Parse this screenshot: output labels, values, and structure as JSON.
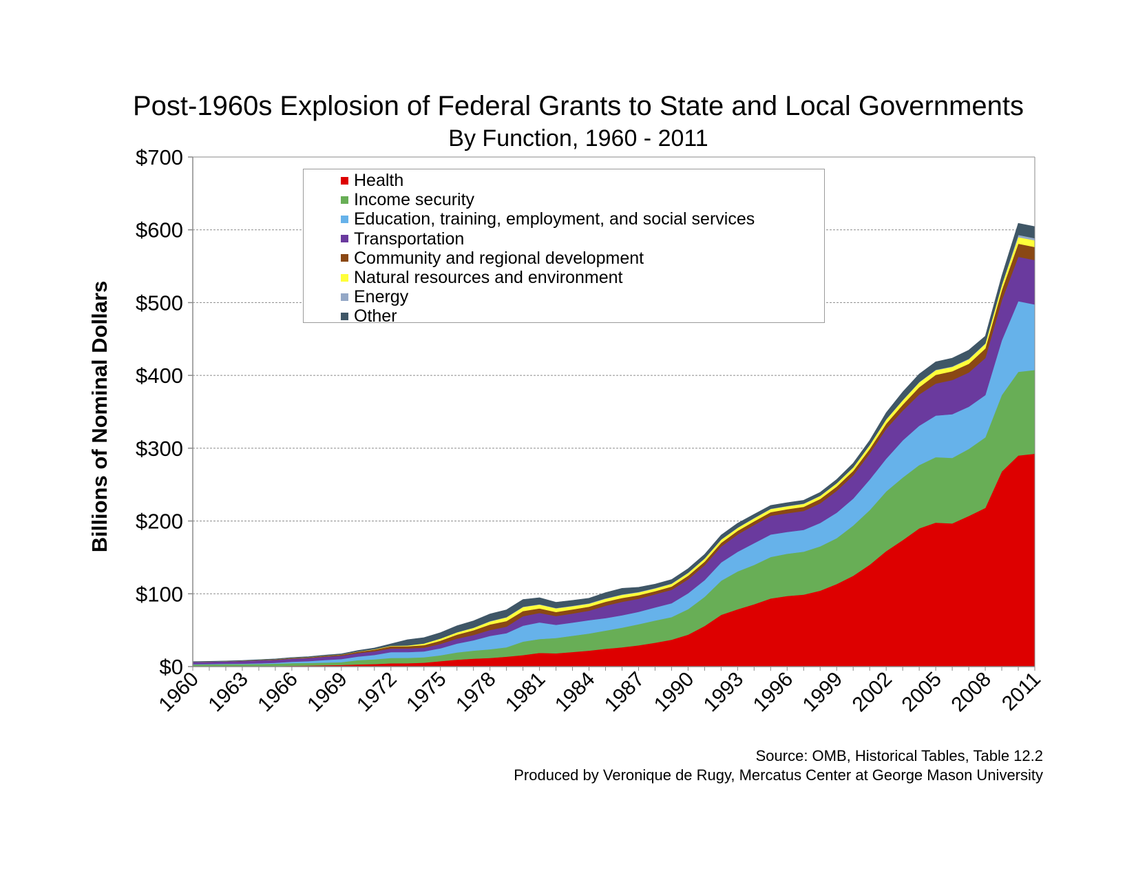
{
  "chart_data": {
    "type": "area",
    "stacked": true,
    "title": "Post-1960s Explosion of Federal Grants to State and Local Governments",
    "subtitle": "By Function, 1960 - 2011",
    "ylabel": "Billions of Nominal Dollars",
    "xlabel": "",
    "ylim": [
      0,
      700
    ],
    "y_ticks": [
      "$0",
      "$100",
      "$200",
      "$300",
      "$400",
      "$500",
      "$600",
      "$700"
    ],
    "y_tick_values": [
      0,
      100,
      200,
      300,
      400,
      500,
      600,
      700
    ],
    "x_tick_labels": [
      "1960",
      "1963",
      "1966",
      "1969",
      "1972",
      "1975",
      "1978",
      "1981",
      "1984",
      "1987",
      "1990",
      "1993",
      "1996",
      "1999",
      "2002",
      "2005",
      "2008",
      "2011"
    ],
    "grid": "horizontal dashed",
    "legend_position": "top-left inside plot",
    "x": [
      1960,
      1961,
      1962,
      1963,
      1964,
      1965,
      1966,
      1967,
      1968,
      1969,
      1970,
      1971,
      1972,
      1973,
      1974,
      1975,
      1976,
      1977,
      1978,
      1979,
      1980,
      1981,
      1982,
      1983,
      1984,
      1985,
      1986,
      1987,
      1988,
      1989,
      1990,
      1991,
      1992,
      1993,
      1994,
      1995,
      1996,
      1997,
      1998,
      1999,
      2000,
      2001,
      2002,
      2003,
      2004,
      2005,
      2006,
      2007,
      2008,
      2009,
      2010,
      2011
    ],
    "series": [
      {
        "name": "Health",
        "color": "#dd0000",
        "values": [
          0.2,
          0.2,
          0.3,
          0.3,
          0.3,
          0.6,
          1.2,
          1.5,
          1.9,
          2.3,
          3.0,
          3.5,
          4.5,
          4.6,
          5.4,
          7.5,
          9.5,
          10.9,
          11.8,
          13.6,
          15.8,
          18.8,
          18.3,
          20.1,
          21.9,
          24.5,
          26.5,
          29.2,
          32.8,
          37.0,
          43.9,
          55.8,
          71.0,
          78.8,
          85.6,
          93.6,
          97.0,
          98.9,
          104.3,
          113.4,
          124.8,
          140.0,
          158.7,
          173.8,
          189.9,
          197.8,
          196.7,
          207.0,
          218.0,
          268.0,
          290.0,
          292.5
        ]
      },
      {
        "name": "Income security",
        "color": "#68ae56",
        "values": [
          2.6,
          2.8,
          3.0,
          3.1,
          3.3,
          3.5,
          3.5,
          3.5,
          3.6,
          3.8,
          5.8,
          6.5,
          7.4,
          7.4,
          7.5,
          8.0,
          10.0,
          11.0,
          12.0,
          13.0,
          18.5,
          19.0,
          21.0,
          22.3,
          23.5,
          25.0,
          27.0,
          29.0,
          30.5,
          31.0,
          35.0,
          40.0,
          47.0,
          52.0,
          54.0,
          57.0,
          58.0,
          59.0,
          61.0,
          63.0,
          69.0,
          75.0,
          82.0,
          86.0,
          87.0,
          90.0,
          90.0,
          92.0,
          97.0,
          105.0,
          115.0,
          115.0
        ]
      },
      {
        "name": "Education, training, employment, and social services",
        "color": "#66b2ea",
        "values": [
          0.5,
          0.6,
          0.7,
          0.7,
          0.9,
          1.1,
          2.0,
          2.5,
          3.6,
          4.2,
          5.0,
          6.0,
          8.0,
          8.0,
          8.0,
          9.7,
          12.1,
          14.2,
          18.4,
          19.3,
          21.9,
          22.9,
          18.1,
          18.0,
          18.4,
          17.1,
          17.0,
          17.0,
          18.0,
          19.0,
          21.8,
          23.0,
          25.0,
          27.0,
          30.0,
          30.8,
          30.0,
          30.0,
          32.0,
          35.0,
          37.0,
          42.0,
          45.0,
          51.0,
          54.0,
          57.0,
          60.0,
          58.0,
          58.0,
          75.0,
          97.0,
          90.0
        ]
      },
      {
        "name": "Transportation",
        "color": "#6a3a9e",
        "values": [
          3.0,
          3.0,
          3.0,
          3.5,
          4.0,
          4.0,
          4.2,
          4.2,
          4.5,
          4.6,
          4.6,
          5.0,
          5.0,
          5.0,
          5.0,
          5.9,
          6.8,
          7.3,
          8.0,
          9.0,
          13.0,
          13.0,
          12.0,
          12.5,
          13.0,
          17.0,
          18.5,
          18.0,
          18.0,
          18.5,
          19.2,
          20.5,
          22.0,
          23.7,
          25.0,
          25.8,
          25.7,
          26.0,
          27.0,
          30.0,
          32.0,
          36.0,
          41.0,
          41.0,
          43.0,
          44.0,
          47.0,
          47.0,
          51.0,
          55.0,
          61.0,
          61.0
        ]
      },
      {
        "name": "Community and regional development",
        "color": "#8a4814",
        "values": [
          0.1,
          0.2,
          0.2,
          0.3,
          0.4,
          0.6,
          0.7,
          0.9,
          1.1,
          1.5,
          1.9,
          2.4,
          3.0,
          3.0,
          3.6,
          4.5,
          5.5,
          6.5,
          7.7,
          7.6,
          7.1,
          6.2,
          5.6,
          5.7,
          5.5,
          5.5,
          5.3,
          4.9,
          4.3,
          4.5,
          5.0,
          5.0,
          5.0,
          5.0,
          5.0,
          5.0,
          5.5,
          5.6,
          6.0,
          6.0,
          6.0,
          6.0,
          7.0,
          8.0,
          10.0,
          12.0,
          12.0,
          12.0,
          13.0,
          14.0,
          18.0,
          18.0
        ]
      },
      {
        "name": "Natural resources and environment",
        "color": "#ffff3a",
        "values": [
          0.1,
          0.1,
          0.1,
          0.1,
          0.1,
          0.2,
          0.2,
          0.2,
          0.2,
          0.2,
          0.4,
          0.5,
          0.8,
          1.0,
          2.2,
          2.8,
          3.1,
          3.2,
          4.1,
          5.0,
          5.4,
          5.2,
          4.9,
          4.4,
          4.1,
          4.1,
          4.3,
          3.9,
          3.7,
          3.6,
          3.7,
          3.9,
          4.2,
          4.0,
          4.1,
          4.2,
          4.0,
          4.0,
          4.1,
          4.2,
          4.6,
          5.2,
          5.7,
          6.0,
          6.5,
          6.3,
          6.0,
          6.2,
          6.4,
          6.8,
          9.0,
          9.0
        ]
      },
      {
        "name": "Energy",
        "color": "#94a8c6",
        "values": [
          0.0,
          0.0,
          0.0,
          0.0,
          0.0,
          0.0,
          0.0,
          0.0,
          0.0,
          0.0,
          0.0,
          0.0,
          0.0,
          0.0,
          0.1,
          0.2,
          0.2,
          0.3,
          0.4,
          0.5,
          0.5,
          0.6,
          0.5,
          0.5,
          0.5,
          0.5,
          0.5,
          0.5,
          0.5,
          0.5,
          0.5,
          0.5,
          0.5,
          0.5,
          0.5,
          0.5,
          0.5,
          0.5,
          0.5,
          0.5,
          0.5,
          0.5,
          0.5,
          0.5,
          0.5,
          0.6,
          0.6,
          0.6,
          0.6,
          0.7,
          3.0,
          3.0
        ]
      },
      {
        "name": "Other",
        "color": "#3f5666",
        "values": [
          0.4,
          0.4,
          0.5,
          0.5,
          0.6,
          0.6,
          0.7,
          0.8,
          0.9,
          1.0,
          1.4,
          1.7,
          2.6,
          8.0,
          8.0,
          8.0,
          9.0,
          9.5,
          10.0,
          10.0,
          10.0,
          9.0,
          8.0,
          7.5,
          7.0,
          8.0,
          8.5,
          6.5,
          5.5,
          5.5,
          5.5,
          5.5,
          6.0,
          6.0,
          5.0,
          4.5,
          4.5,
          4.5,
          4.5,
          5.0,
          5.5,
          6.0,
          9.0,
          11.0,
          11.0,
          11.0,
          11.5,
          12.0,
          10.0,
          12.0,
          16.0,
          16.0
        ]
      }
    ]
  },
  "source_lines": [
    "Source: OMB, Historical Tables, Table 12.2",
    "Produced by Veronique de Rugy, Mercatus Center at George Mason University"
  ]
}
